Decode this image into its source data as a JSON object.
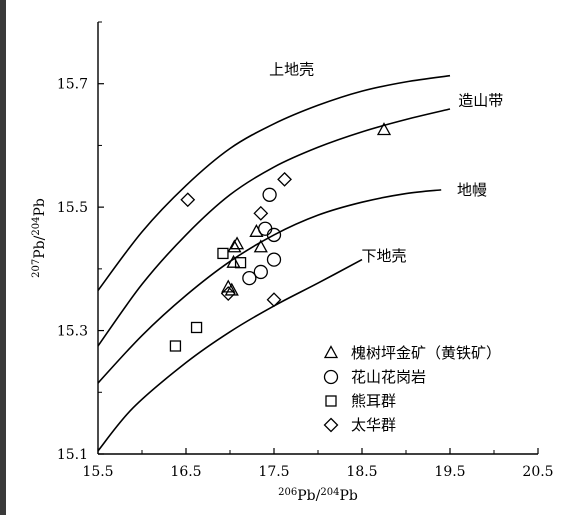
{
  "chart_data": {
    "type": "scatter",
    "xlabel": "206Pb/204Pb",
    "ylabel": "207Pb/204Pb",
    "xlabel_parts": {
      "sup1": "206",
      "base1": "Pb/",
      "sup2": "204",
      "base2": "Pb"
    },
    "ylabel_parts": {
      "sup1": "207",
      "base1": "Pb/",
      "sup2": "204",
      "base2": "Pb"
    },
    "xlim": [
      15.5,
      20.5
    ],
    "ylim": [
      15.1,
      15.8
    ],
    "x_ticks": [
      "15.5",
      "16.5",
      "17.5",
      "18.5",
      "19.5",
      "20.5"
    ],
    "y_ticks": [
      "15.1",
      "15.3",
      "15.5",
      "15.7"
    ],
    "curves": [
      {
        "name": "上地壳",
        "points": [
          [
            15.5,
            15.365
          ],
          [
            16.0,
            15.46
          ],
          [
            16.5,
            15.535
          ],
          [
            17.0,
            15.595
          ],
          [
            17.5,
            15.635
          ],
          [
            18.0,
            15.665
          ],
          [
            18.5,
            15.688
          ],
          [
            19.0,
            15.703
          ],
          [
            19.5,
            15.713
          ]
        ]
      },
      {
        "name": "造山带",
        "points": [
          [
            15.5,
            15.275
          ],
          [
            16.0,
            15.375
          ],
          [
            16.5,
            15.455
          ],
          [
            17.0,
            15.52
          ],
          [
            17.5,
            15.565
          ],
          [
            18.0,
            15.597
          ],
          [
            18.5,
            15.622
          ],
          [
            19.0,
            15.642
          ],
          [
            19.5,
            15.659
          ]
        ]
      },
      {
        "name": "地幔",
        "points": [
          [
            15.5,
            15.215
          ],
          [
            16.0,
            15.292
          ],
          [
            16.5,
            15.357
          ],
          [
            17.0,
            15.412
          ],
          [
            17.5,
            15.455
          ],
          [
            18.0,
            15.487
          ],
          [
            18.5,
            15.508
          ],
          [
            19.0,
            15.522
          ],
          [
            19.4,
            15.528
          ]
        ]
      },
      {
        "name": "下地壳",
        "points": [
          [
            15.5,
            15.105
          ],
          [
            15.9,
            15.175
          ],
          [
            16.5,
            15.248
          ],
          [
            17.0,
            15.298
          ],
          [
            17.5,
            15.34
          ],
          [
            18.0,
            15.377
          ],
          [
            18.5,
            15.415
          ]
        ]
      }
    ],
    "curve_labels": [
      {
        "text": "上地壳",
        "x": 17.7,
        "y": 15.715
      },
      {
        "text": "造山带",
        "x": 19.85,
        "y": 15.665
      },
      {
        "text": "地幔",
        "x": 19.75,
        "y": 15.52
      },
      {
        "text": "下地壳",
        "x": 18.75,
        "y": 15.413
      }
    ],
    "series": [
      {
        "name": "槐树坪金矿（黄铁矿）",
        "marker": "triangle",
        "points": [
          [
            16.98,
            15.37
          ],
          [
            17.02,
            15.365
          ],
          [
            17.04,
            15.41
          ],
          [
            17.05,
            15.435
          ],
          [
            17.08,
            15.44
          ],
          [
            17.3,
            15.46
          ],
          [
            17.35,
            15.435
          ],
          [
            18.75,
            15.625
          ]
        ]
      },
      {
        "name": "花山花岗岩",
        "marker": "circle",
        "points": [
          [
            17.22,
            15.385
          ],
          [
            17.35,
            15.395
          ],
          [
            17.4,
            15.465
          ],
          [
            17.45,
            15.52
          ],
          [
            17.5,
            15.455
          ],
          [
            17.5,
            15.415
          ]
        ]
      },
      {
        "name": "熊耳群",
        "marker": "square",
        "points": [
          [
            16.38,
            15.275
          ],
          [
            16.62,
            15.305
          ],
          [
            16.92,
            15.425
          ],
          [
            17.12,
            15.41
          ]
        ]
      },
      {
        "name": "太华群",
        "marker": "diamond",
        "points": [
          [
            16.52,
            15.512
          ],
          [
            16.98,
            15.36
          ],
          [
            17.35,
            15.49
          ],
          [
            17.5,
            15.35
          ],
          [
            17.62,
            15.545
          ]
        ]
      }
    ],
    "legend": {
      "placement": "bottom-right",
      "entries": [
        {
          "marker": "triangle",
          "label": "槐树坪金矿（黄铁矿）"
        },
        {
          "marker": "circle",
          "label": "花山花岗岩"
        },
        {
          "marker": "square",
          "label": "熊耳群"
        },
        {
          "marker": "diamond",
          "label": "太华群"
        }
      ]
    },
    "grid": false
  }
}
